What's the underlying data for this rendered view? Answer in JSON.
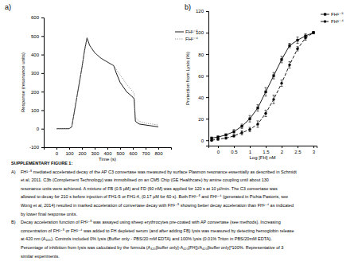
{
  "chart_data": [
    {
      "type": "line",
      "title": "a)",
      "xlabel": "Time (s)",
      "ylabel": "Response (resonance units)",
      "x": [
        0,
        50,
        100,
        120,
        150,
        200,
        220,
        240,
        260,
        300,
        350,
        400,
        450,
        470,
        500,
        550,
        600,
        610,
        620,
        650,
        700,
        750,
        800
      ],
      "series": [
        {
          "name": "FH¹⁻⁵",
          "color": "#000000",
          "line_style": "solid",
          "values": [
            0,
            0,
            0,
            10,
            130,
            330,
            420,
            490,
            450,
            410,
            380,
            360,
            340,
            300,
            250,
            200,
            170,
            160,
            40,
            25,
            20,
            15,
            10
          ]
        },
        {
          "name": "FH¹⁻⁴",
          "color": "#888888",
          "line_style": "dotted",
          "values": [
            0,
            0,
            0,
            10,
            130,
            330,
            420,
            490,
            450,
            410,
            380,
            360,
            340,
            320,
            290,
            240,
            200,
            190,
            60,
            40,
            30,
            25,
            20
          ]
        }
      ],
      "xlim": [
        -100,
        900
      ],
      "ylim": [
        -100,
        600
      ],
      "xticks": [
        0,
        100,
        200,
        300,
        400,
        500,
        600,
        700,
        800
      ],
      "yticks": [
        -100,
        0,
        100,
        200,
        300,
        400,
        500,
        600
      ],
      "legend": "right"
    },
    {
      "type": "line",
      "title": "b)",
      "xlabel": "Log [FH] nM",
      "ylabel": "Protection from Lysis (%)",
      "x": [
        -0.2,
        0,
        0.25,
        0.5,
        0.75,
        1,
        1.25,
        1.5,
        1.75,
        2,
        2.25,
        2.5,
        2.75,
        3
      ],
      "series": [
        {
          "name": "FH¹⁻⁵",
          "color": "#000000",
          "line_style": "solid",
          "marker": "square",
          "values": [
            2,
            3,
            5,
            8,
            13,
            20,
            30,
            45,
            60,
            75,
            88,
            93,
            97,
            100
          ],
          "errors": [
            1,
            1,
            1,
            2,
            2,
            3,
            3,
            4,
            3,
            3,
            2,
            3,
            2,
            1
          ]
        },
        {
          "name": "FH¹⁻⁴",
          "color": "#000000",
          "line_style": "dashed",
          "marker": "circle",
          "values": [
            0,
            1,
            2,
            4,
            7,
            10,
            15,
            25,
            38,
            53,
            70,
            85,
            95,
            100
          ],
          "errors": [
            1,
            1,
            1,
            1,
            2,
            2,
            3,
            3,
            4,
            3,
            3,
            2,
            2,
            1
          ]
        }
      ],
      "xlim": [
        -0.3,
        3.1
      ],
      "ylim": [
        -5,
        120
      ],
      "xticks": [
        0,
        0.5,
        1,
        1.5,
        2,
        2.5,
        3
      ],
      "yticks": [
        0,
        20,
        40,
        60,
        80,
        100,
        120
      ],
      "legend": "right"
    }
  ],
  "caption": {
    "title": "SUPPLEMENTARY FIGURE 1:",
    "paragraphs": [
      {
        "label": "A)",
        "lines": [
          "FH¹⁻⁵ mediated accelerated decay of the AP C3 convertase was measured by surface Plasmon resonance essentially as described in Schmidt",
          "et al, 2011. C3b (Complement Technology) was immobilised on an CM5 Chip (GE Healthcare) by amine coupling until about 130",
          "resonance units were achieved.  A mixture of FB (0.5 µM) and FD (60 nM) was applied for 120 s at 10 µl/min. The C3 convertase was",
          "allowed to decay for 210 s before injection of FH1-5 or FH1-4, (0.17 µM for 60 s). Both FH¹⁻⁵ and FH¹⁻⁴ (generated in Pichia Pastoris, see",
          "Wong et al, 2014) resulted in marked acceleration of convertase decay with FH¹⁻⁵ showing better decay acceleration than FH¹⁻⁴ as indicated",
          "by lower final response units."
        ]
      },
      {
        "label": "B)",
        "lines": [
          "Decay acceleration function of FH¹⁻⁵ was assayed using sheep erythrocytes pre-coated with AP convertase (see methods). Increasing",
          "concentration of FH¹⁻⁵ or FH¹⁻⁴ was added to FH depleted serum (and after adding FB) lysis was measured by detecting hemoglobin release",
          "at 420 nm (A₄₂₀). Controls included 0% lysis (Buffer only - PBS/20 mM EDTA) and 100% lysis (0.01% Triton in PBS/20mM EDTA).",
          "Percentage of inhibition from lysis was calculated by the formula (A₄₂₀[buffer only]-A₄₂₀[FH])/A₄₂₀[buffer only]*100%. Representative of 3",
          "similar experiments."
        ]
      }
    ]
  }
}
